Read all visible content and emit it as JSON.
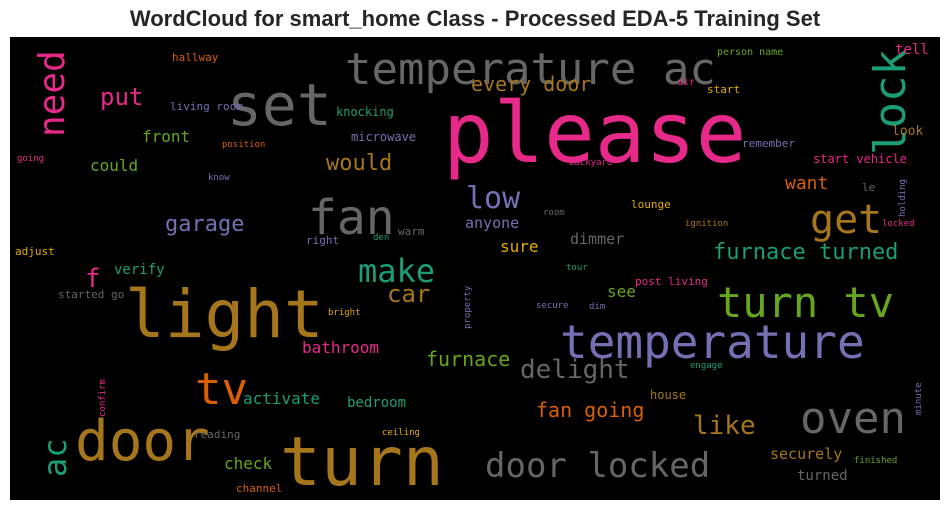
{
  "chart_data": {
    "type": "wordcloud",
    "title": "WordCloud for smart_home Class - Processed EDA-5 Training Set",
    "background": "#000000",
    "colormap": "Dark2",
    "palette": {
      "green": "#1b9e77",
      "orange": "#d95f02",
      "purple": "#7570b3",
      "pink": "#e7298a",
      "lime": "#66a61e",
      "yellow": "#e6ab02",
      "brown": "#a6761d",
      "gray": "#666666"
    },
    "words": [
      {
        "text": "please",
        "color": "#e7298a"
      },
      {
        "text": "turn",
        "color": "#a6761d"
      },
      {
        "text": "light",
        "color": "#a6761d"
      },
      {
        "text": "temperature",
        "color": "#7570b3"
      },
      {
        "text": "set",
        "color": "#666666"
      },
      {
        "text": "temperature ac",
        "color": "#666666"
      },
      {
        "text": "door",
        "color": "#a6761d"
      },
      {
        "text": "turn tv",
        "color": "#66a61e"
      },
      {
        "text": "oven",
        "color": "#666666"
      },
      {
        "text": "lock",
        "color": "#1b9e77"
      },
      {
        "text": "fan",
        "color": "#666666"
      },
      {
        "text": "door locked",
        "color": "#666666"
      },
      {
        "text": "need",
        "color": "#e7298a"
      },
      {
        "text": "get",
        "color": "#a6761d"
      },
      {
        "text": "tv",
        "color": "#d95f02"
      },
      {
        "text": "make",
        "color": "#1b9e77"
      },
      {
        "text": "ac",
        "color": "#1b9e77"
      },
      {
        "text": "low",
        "color": "#7570b3"
      },
      {
        "text": "delight",
        "color": "#666666"
      },
      {
        "text": "like",
        "color": "#a6761d"
      },
      {
        "text": "car",
        "color": "#a6761d"
      },
      {
        "text": "furnace turned",
        "color": "#1b9e77"
      },
      {
        "text": "garage",
        "color": "#7570b3"
      },
      {
        "text": "put",
        "color": "#e7298a"
      },
      {
        "text": "would",
        "color": "#a6761d"
      },
      {
        "text": "every door",
        "color": "#a6761d"
      },
      {
        "text": "fan going",
        "color": "#d95f02"
      },
      {
        "text": "furnace",
        "color": "#66a61e"
      },
      {
        "text": "want",
        "color": "#d95f02"
      },
      {
        "text": "f",
        "color": "#e7298a"
      },
      {
        "text": "bathroom",
        "color": "#e7298a"
      },
      {
        "text": "activate",
        "color": "#1b9e77"
      },
      {
        "text": "check",
        "color": "#66a61e"
      },
      {
        "text": "front",
        "color": "#66a61e"
      },
      {
        "text": "could",
        "color": "#66a61e"
      },
      {
        "text": "sure",
        "color": "#e6ab02"
      },
      {
        "text": "anyone",
        "color": "#7570b3"
      },
      {
        "text": "dimmer",
        "color": "#666666"
      },
      {
        "text": "see",
        "color": "#66a61e"
      },
      {
        "text": "securely",
        "color": "#a6761d"
      },
      {
        "text": "turned",
        "color": "#666666"
      },
      {
        "text": "bedroom",
        "color": "#1b9e77"
      },
      {
        "text": "verify",
        "color": "#1b9e77"
      },
      {
        "text": "tell",
        "color": "#e7298a"
      },
      {
        "text": "look",
        "color": "#a6761d"
      },
      {
        "text": "start vehicle",
        "color": "#e7298a"
      },
      {
        "text": "house",
        "color": "#a6761d"
      },
      {
        "text": "knocking",
        "color": "#1b9e77"
      },
      {
        "text": "microwave",
        "color": "#7570b3"
      },
      {
        "text": "living room",
        "color": "#7570b3"
      },
      {
        "text": "hallway",
        "color": "#d95f02"
      },
      {
        "text": "start",
        "color": "#e6ab02"
      },
      {
        "text": "lounge",
        "color": "#e6ab02"
      },
      {
        "text": "remember",
        "color": "#7570b3"
      },
      {
        "text": "post living",
        "color": "#e7298a"
      },
      {
        "text": "reading",
        "color": "#666666"
      },
      {
        "text": "channel",
        "color": "#d95f02"
      },
      {
        "text": "adjust",
        "color": "#e6ab02"
      },
      {
        "text": "right",
        "color": "#7570b3"
      },
      {
        "text": "warm",
        "color": "#666666"
      },
      {
        "text": "started go",
        "color": "#666666"
      },
      {
        "text": "person name",
        "color": "#66a61e"
      },
      {
        "text": "air",
        "color": "#e7298a"
      },
      {
        "text": "le",
        "color": "#666666"
      },
      {
        "text": "position",
        "color": "#d95f02"
      },
      {
        "text": "going",
        "color": "#e7298a"
      },
      {
        "text": "know",
        "color": "#7570b3"
      },
      {
        "text": "backyard",
        "color": "#e7298a"
      },
      {
        "text": "room",
        "color": "#666666"
      },
      {
        "text": "den",
        "color": "#1b9e77"
      },
      {
        "text": "ignition",
        "color": "#a6761d"
      },
      {
        "text": "holding",
        "color": "#7570b3"
      },
      {
        "text": "locked",
        "color": "#e7298a"
      },
      {
        "text": "tour",
        "color": "#1b9e77"
      },
      {
        "text": "secure",
        "color": "#7570b3"
      },
      {
        "text": "dim",
        "color": "#7570b3"
      },
      {
        "text": "property",
        "color": "#7570b3"
      },
      {
        "text": "bright",
        "color": "#e6ab02"
      },
      {
        "text": "engage",
        "color": "#1b9e77"
      },
      {
        "text": "confirm",
        "color": "#e7298a"
      },
      {
        "text": "ceiling",
        "color": "#e6ab02"
      },
      {
        "text": "finished",
        "color": "#66a61e"
      },
      {
        "text": "minute",
        "color": "#7570b3"
      }
    ]
  }
}
